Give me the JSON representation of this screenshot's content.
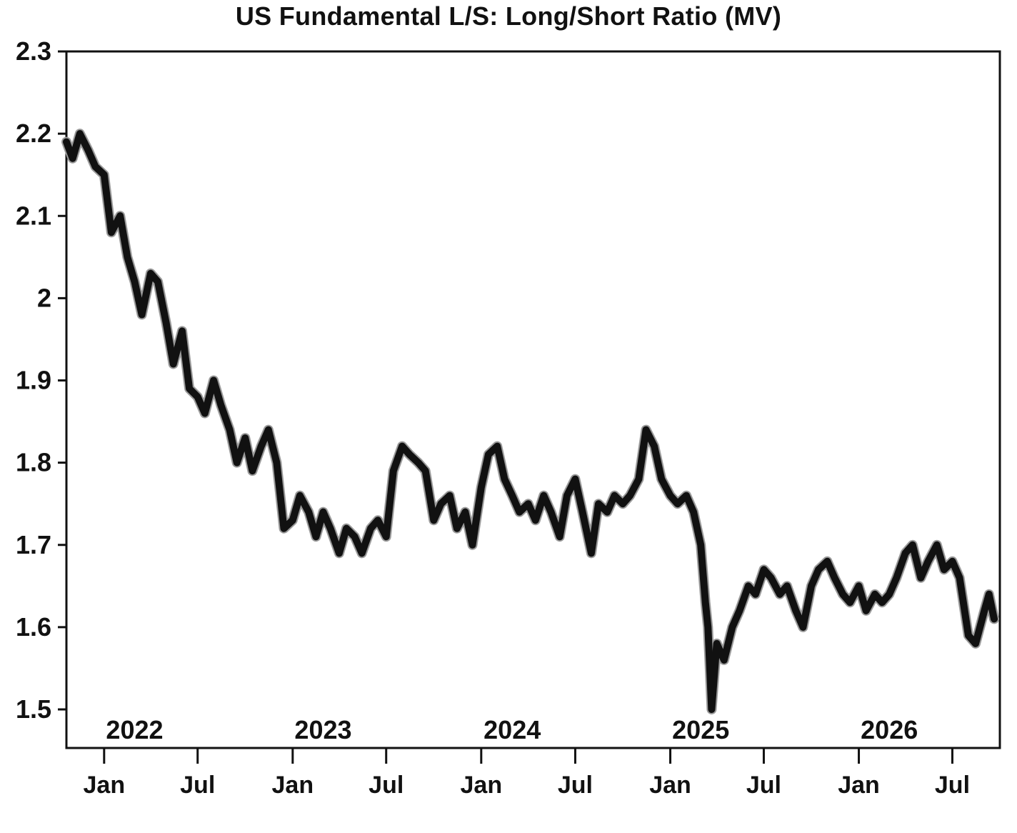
{
  "chart_data": {
    "type": "line",
    "title": "US Fundamental L/S: Long/Short Ratio (MV)",
    "xlabel": "",
    "ylabel": "",
    "ylim": [
      1.455,
      2.3
    ],
    "xlim": [
      "2021-10-20",
      "2026-10-01"
    ],
    "y_ticks": [
      "2.3",
      "2.2",
      "2.1",
      "2",
      "1.9",
      "1.8",
      "1.7",
      "1.6",
      "1.5"
    ],
    "x_month_ticks": [
      {
        "date": "2022-01-01",
        "label": "Jan"
      },
      {
        "date": "2022-07-01",
        "label": "Jul"
      },
      {
        "date": "2023-01-01",
        "label": "Jan"
      },
      {
        "date": "2023-07-01",
        "label": "Jul"
      },
      {
        "date": "2024-01-01",
        "label": "Jan"
      },
      {
        "date": "2024-07-01",
        "label": "Jul"
      },
      {
        "date": "2025-01-01",
        "label": "Jan"
      },
      {
        "date": "2025-07-01",
        "label": "Jul"
      },
      {
        "date": "2026-01-01",
        "label": "Jan"
      },
      {
        "date": "2026-07-01",
        "label": "Jul"
      }
    ],
    "x_year_labels": [
      {
        "date": "2022-03-01",
        "label": "2022"
      },
      {
        "date": "2023-03-01",
        "label": "2023"
      },
      {
        "date": "2024-03-01",
        "label": "2024"
      },
      {
        "date": "2025-03-01",
        "label": "2025"
      },
      {
        "date": "2026-03-01",
        "label": "2026"
      }
    ],
    "grid": false,
    "line_color": "#111111",
    "series": [
      {
        "x": [
          "2021-10-20",
          "2021-11-01",
          "2021-11-15",
          "2021-12-01",
          "2021-12-15",
          "2022-01-01",
          "2022-01-15",
          "2022-02-01",
          "2022-02-15",
          "2022-03-01",
          "2022-03-15",
          "2022-04-01",
          "2022-04-15",
          "2022-05-01",
          "2022-05-15",
          "2022-06-01",
          "2022-06-15",
          "2022-07-01",
          "2022-07-15",
          "2022-08-01",
          "2022-08-15",
          "2022-09-01",
          "2022-09-15",
          "2022-10-01",
          "2022-10-15",
          "2022-11-01",
          "2022-11-15",
          "2022-12-01",
          "2022-12-15",
          "2023-01-01",
          "2023-01-15",
          "2023-02-01",
          "2023-02-15",
          "2023-03-01",
          "2023-03-15",
          "2023-04-01",
          "2023-04-15",
          "2023-05-01",
          "2023-05-15",
          "2023-06-01",
          "2023-06-15",
          "2023-07-01",
          "2023-07-15",
          "2023-08-01",
          "2023-08-15",
          "2023-09-01",
          "2023-09-15",
          "2023-10-01",
          "2023-10-15",
          "2023-11-01",
          "2023-11-15",
          "2023-12-01",
          "2023-12-15",
          "2024-01-01",
          "2024-01-15",
          "2024-02-01",
          "2024-02-15",
          "2024-03-01",
          "2024-03-15",
          "2024-04-01",
          "2024-04-15",
          "2024-05-01",
          "2024-05-15",
          "2024-06-01",
          "2024-06-15",
          "2024-07-01",
          "2024-07-15",
          "2024-08-01",
          "2024-08-15",
          "2024-09-01",
          "2024-09-15",
          "2024-10-01",
          "2024-10-15",
          "2024-11-01",
          "2024-11-15",
          "2024-12-01",
          "2024-12-15",
          "2025-01-01",
          "2025-01-15",
          "2025-02-01",
          "2025-02-15",
          "2025-03-01",
          "2025-03-10",
          "2025-03-15",
          "2025-03-22",
          "2025-04-01",
          "2025-04-08",
          "2025-04-15",
          "2025-05-01",
          "2025-05-15",
          "2025-06-01",
          "2025-06-15",
          "2025-07-01",
          "2025-07-15",
          "2025-08-01",
          "2025-08-15",
          "2025-09-01",
          "2025-09-15",
          "2025-10-01",
          "2025-10-15",
          "2025-11-01",
          "2025-11-15",
          "2025-12-01",
          "2025-12-15",
          "2026-01-01",
          "2026-01-15",
          "2026-02-01",
          "2026-02-15",
          "2026-03-01",
          "2026-03-15",
          "2026-04-01",
          "2026-04-15",
          "2026-05-01",
          "2026-05-15",
          "2026-06-01",
          "2026-06-15",
          "2026-07-01",
          "2026-07-15",
          "2026-08-01",
          "2026-08-15",
          "2026-09-01",
          "2026-09-10",
          "2026-09-20"
        ],
        "y": [
          2.19,
          2.17,
          2.2,
          2.18,
          2.16,
          2.15,
          2.08,
          2.1,
          2.05,
          2.02,
          1.98,
          2.03,
          2.02,
          1.97,
          1.92,
          1.96,
          1.89,
          1.88,
          1.86,
          1.9,
          1.87,
          1.84,
          1.8,
          1.83,
          1.79,
          1.82,
          1.84,
          1.8,
          1.72,
          1.73,
          1.76,
          1.74,
          1.71,
          1.74,
          1.72,
          1.69,
          1.72,
          1.71,
          1.69,
          1.72,
          1.73,
          1.71,
          1.79,
          1.82,
          1.81,
          1.8,
          1.79,
          1.73,
          1.75,
          1.76,
          1.72,
          1.74,
          1.7,
          1.77,
          1.81,
          1.82,
          1.78,
          1.76,
          1.74,
          1.75,
          1.73,
          1.76,
          1.74,
          1.71,
          1.76,
          1.78,
          1.74,
          1.69,
          1.75,
          1.74,
          1.76,
          1.75,
          1.76,
          1.78,
          1.84,
          1.82,
          1.78,
          1.76,
          1.75,
          1.76,
          1.74,
          1.7,
          1.63,
          1.6,
          1.5,
          1.58,
          1.57,
          1.56,
          1.6,
          1.62,
          1.65,
          1.64,
          1.67,
          1.66,
          1.64,
          1.65,
          1.62,
          1.6,
          1.65,
          1.67,
          1.68,
          1.66,
          1.64,
          1.63,
          1.65,
          1.62,
          1.64,
          1.63,
          1.64,
          1.66,
          1.69,
          1.7,
          1.66,
          1.68,
          1.7,
          1.67,
          1.68,
          1.66,
          1.59,
          1.58,
          1.62,
          1.64,
          1.61
        ]
      }
    ]
  }
}
